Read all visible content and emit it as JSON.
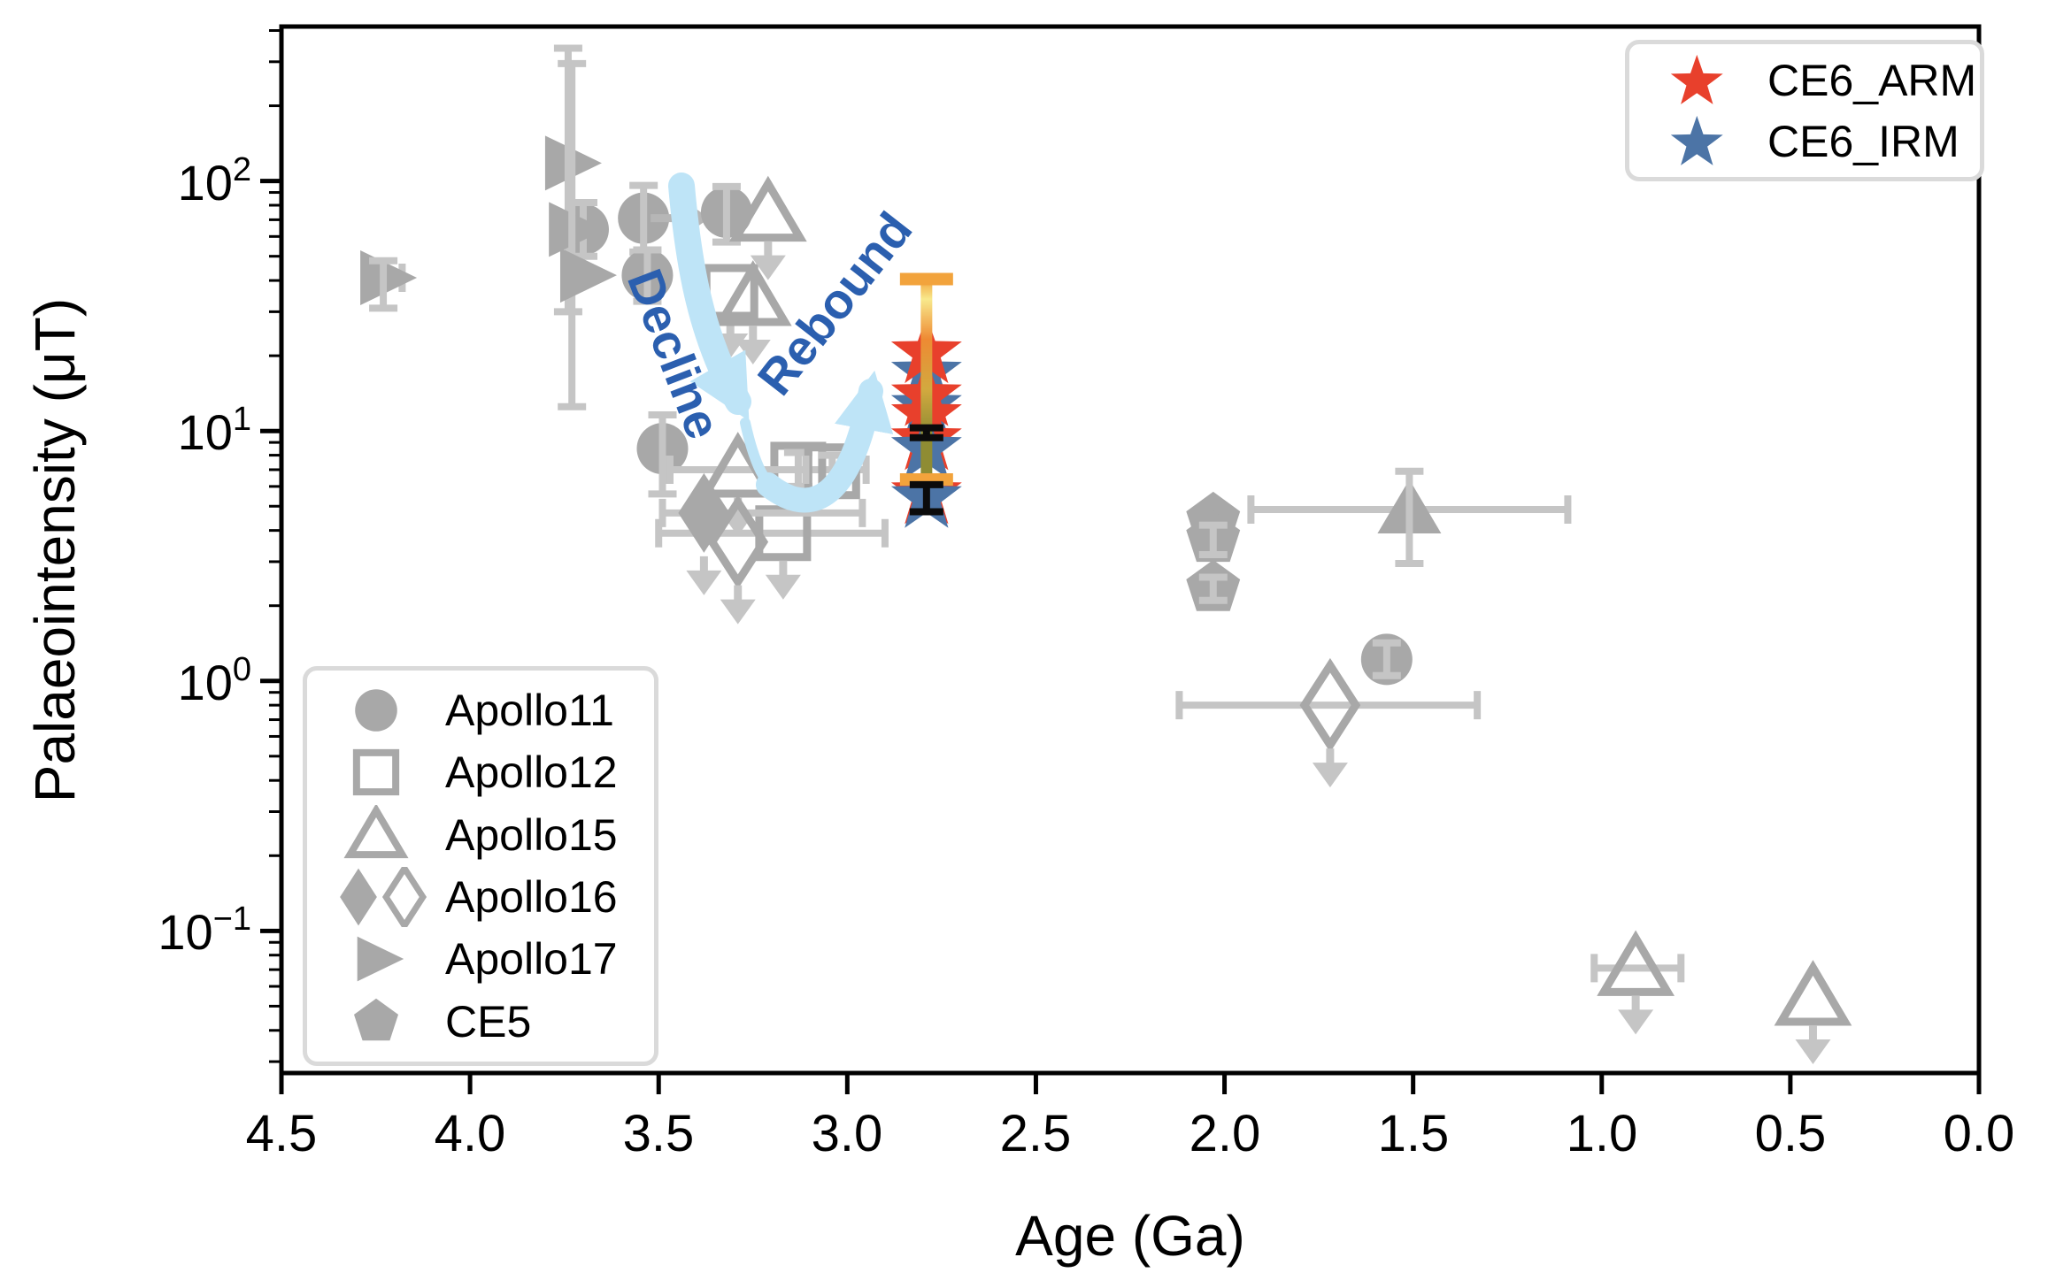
{
  "axes": {
    "xlabel": "Age (Ga)",
    "ylabel": "Palaeointensity (μT)",
    "x_tick_labels": [
      "4.5",
      "4.0",
      "3.5",
      "3.0",
      "2.5",
      "2.0",
      "1.5",
      "1.0",
      "0.5",
      "0.0"
    ],
    "x_tick_values": [
      4.5,
      4.0,
      3.5,
      3.0,
      2.5,
      2.0,
      1.5,
      1.0,
      0.5,
      0.0
    ],
    "y_tick_base": "10",
    "y_tick_exponents": [
      "2",
      "1",
      "0",
      "−1"
    ],
    "y_tick_exp_values": [
      2,
      1,
      0,
      -1
    ],
    "xlim": [
      4.5,
      0.0
    ],
    "ylim": [
      0.027,
      415
    ],
    "y_scale": "log",
    "x_reversed": true
  },
  "legend_apollo": {
    "items": [
      {
        "label": "Apollo11",
        "marker": "circle",
        "fill": "filled"
      },
      {
        "label": "Apollo12",
        "marker": "square",
        "fill": "open"
      },
      {
        "label": "Apollo15",
        "marker": "triangle",
        "fill": "open"
      },
      {
        "label": "Apollo16",
        "marker": "diamond-pair",
        "fill": "both"
      },
      {
        "label": "Apollo17",
        "marker": "triangle-right",
        "fill": "filled"
      },
      {
        "label": "CE5",
        "marker": "pentagon",
        "fill": "filled"
      }
    ]
  },
  "legend_ce6": {
    "items": [
      {
        "label": "CE6_ARM",
        "marker": "star",
        "color": "#E8402C"
      },
      {
        "label": "CE6_IRM",
        "marker": "star",
        "color": "#4C74A6"
      }
    ]
  },
  "annotations": {
    "decline_label": "Decline",
    "rebound_label": "Rebound",
    "text_color": "#2B5FAF",
    "arrow_color": "#BEE4F7"
  },
  "colors": {
    "marker_gray": "#A8A8A8",
    "errorbar_gray": "#C5C5C5",
    "ce6_arm_red": "#E8402C",
    "ce6_irm_blue": "#4C74A6",
    "orange": "#F2A33C",
    "yellow": "#F8E98C",
    "olive": "#8F8C33",
    "black": "#0B0B0B"
  },
  "chart_data": {
    "type": "scatter",
    "title": "",
    "xlabel": "Age (Ga)",
    "ylabel": "Palaeointensity (μT)",
    "x_range": [
      4.5,
      0.0
    ],
    "y_range_log": [
      0.027,
      415
    ],
    "series": [
      {
        "name": "Apollo11",
        "marker": "circle",
        "fill": "filled",
        "points": [
          {
            "age": 3.7,
            "intensity": 64,
            "yerr": [
              50,
              82
            ]
          },
          {
            "age": 3.54,
            "intensity": 71,
            "yerr": [
              52,
              96
            ],
            "xarrow_to": 3.37
          },
          {
            "age": 3.53,
            "intensity": 42,
            "yerr": [
              33,
              53
            ]
          },
          {
            "age": 3.32,
            "intensity": 75,
            "yerr": [
              57,
              95
            ]
          },
          {
            "age": 3.49,
            "intensity": 8.5,
            "yerr": [
              5.6,
              11.6
            ]
          },
          {
            "age": 1.57,
            "intensity": 1.22,
            "yerr": [
              1.05,
              1.42
            ]
          }
        ]
      },
      {
        "name": "Apollo12",
        "marker": "square",
        "fill": "open",
        "points": [
          {
            "age": 3.31,
            "intensity": 36,
            "upper_limit": true
          },
          {
            "age": 3.13,
            "intensity": 7.0,
            "xerr": [
              3.48,
              2.95
            ],
            "yerr": [
              6.0,
              8.2
            ]
          },
          {
            "age": 3.04,
            "intensity": 6.9,
            "yerr": [
              6.0,
              8.0
            ]
          },
          {
            "age": 3.17,
            "intensity": 3.9,
            "xerr": [
              3.5,
              2.9
            ],
            "upper_limit": true
          }
        ]
      },
      {
        "name": "Apollo15",
        "marker": "triangle",
        "fill": "open",
        "points": [
          {
            "age": 3.21,
            "intensity": 74,
            "upper_limit": true
          },
          {
            "age": 3.25,
            "intensity": 34,
            "upper_limit": true
          },
          {
            "age": 3.29,
            "intensity": 7.0,
            "xerr": [
              3.47,
              3.11
            ],
            "upper_limit": true
          },
          {
            "age": 1.51,
            "intensity": 4.85,
            "fill": "filled",
            "yerr": [
              2.95,
              6.9
            ],
            "xerr": [
              1.93,
              1.09
            ]
          },
          {
            "age": 0.91,
            "intensity": 0.071,
            "xerr": [
              1.02,
              0.79
            ],
            "upper_limit": true
          },
          {
            "age": 0.44,
            "intensity": 0.054,
            "upper_limit": true
          }
        ]
      },
      {
        "name": "Apollo16",
        "marker": "diamond",
        "fill": "filled",
        "points": [
          {
            "age": 3.38,
            "intensity": 4.7,
            "fill": "filled",
            "xerr": [
              3.49,
              2.96
            ],
            "upper_limit": true
          },
          {
            "age": 3.29,
            "intensity": 3.6,
            "fill": "open",
            "upper_limit": true
          },
          {
            "age": 1.72,
            "intensity": 0.8,
            "fill": "open",
            "xerr": [
              2.12,
              1.33
            ],
            "upper_limit": true
          }
        ]
      },
      {
        "name": "Apollo17",
        "marker": "triangle-right",
        "fill": "filled",
        "points": [
          {
            "age": 4.23,
            "intensity": 41,
            "yerr": [
              31,
              48
            ],
            "xerr": [
              4.28,
              4.18
            ]
          },
          {
            "age": 3.74,
            "intensity": 118,
            "yerr": [
              30,
              340
            ]
          },
          {
            "age": 3.73,
            "intensity": 64,
            "yerr": [
              12.5,
              295
            ]
          },
          {
            "age": 3.7,
            "intensity": 42
          }
        ]
      },
      {
        "name": "CE5",
        "marker": "pentagon",
        "fill": "filled",
        "points": [
          {
            "age": 2.03,
            "intensity": 4.4
          },
          {
            "age": 2.03,
            "intensity": 3.7,
            "yerr": [
              3.2,
              4.2
            ]
          },
          {
            "age": 2.03,
            "intensity": 2.35,
            "yerr": [
              2.1,
              2.6
            ]
          }
        ]
      },
      {
        "name": "CE6_ARM",
        "marker": "star",
        "color": "#E8402C"
      },
      {
        "name": "CE6_IRM",
        "marker": "star",
        "color": "#4C74A6"
      }
    ],
    "ce6_stars": [
      {
        "series": "CE6_IRM",
        "age": 2.79,
        "intensity": 17.0
      },
      {
        "series": "CE6_ARM",
        "age": 2.79,
        "intensity": 20.5
      },
      {
        "series": "CE6_IRM",
        "age": 2.79,
        "intensity": 12.5
      },
      {
        "series": "CE6_ARM",
        "age": 2.79,
        "intensity": 13.8
      },
      {
        "series": "CE6_ARM",
        "age": 2.79,
        "intensity": 11.5
      },
      {
        "series": "CE6_ARM",
        "age": 2.79,
        "intensity": 9.2
      },
      {
        "series": "CE6_IRM",
        "age": 2.79,
        "intensity": 8.5
      },
      {
        "series": "CE6_ARM",
        "age": 2.79,
        "intensity": 5.6
      },
      {
        "series": "CE6_IRM",
        "age": 2.79,
        "intensity": 5.4
      }
    ],
    "ce6_error_bars": [
      {
        "style": "orange-gradient",
        "age": 2.79,
        "range": [
          6.4,
          40.5
        ]
      },
      {
        "style": "black",
        "age": 2.79,
        "range": [
          9.4,
          10.3
        ]
      },
      {
        "style": "black",
        "age": 2.79,
        "range": [
          4.75,
          6.1
        ]
      }
    ]
  }
}
